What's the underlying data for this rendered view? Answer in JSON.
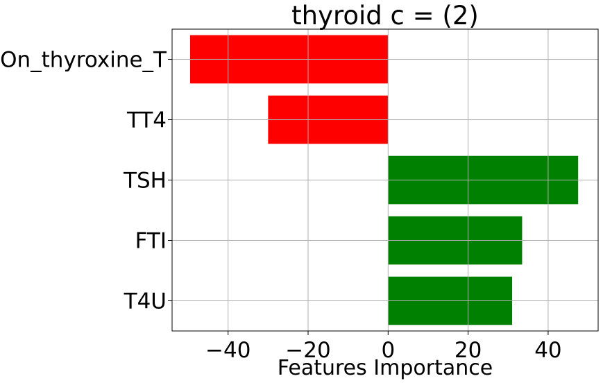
{
  "chart_data": {
    "type": "bar",
    "orientation": "horizontal",
    "title": "thyroid c = (2)",
    "xlabel": "Features Importance",
    "ylabel": "",
    "categories": [
      "On_thyroxine_T",
      "TT4",
      "TSH",
      "FTI",
      "T4U"
    ],
    "values": [
      -49.5,
      -30.0,
      47.5,
      33.5,
      31.0
    ],
    "bar_colors": [
      "#ff0000",
      "#ff0000",
      "#008000",
      "#008000",
      "#008000"
    ],
    "xlim": [
      -54,
      52.5
    ],
    "xticks": [
      -40,
      -20,
      0,
      20,
      40
    ],
    "xtick_labels": [
      "−40",
      "−20",
      "0",
      "20",
      "40"
    ],
    "grid": true
  }
}
